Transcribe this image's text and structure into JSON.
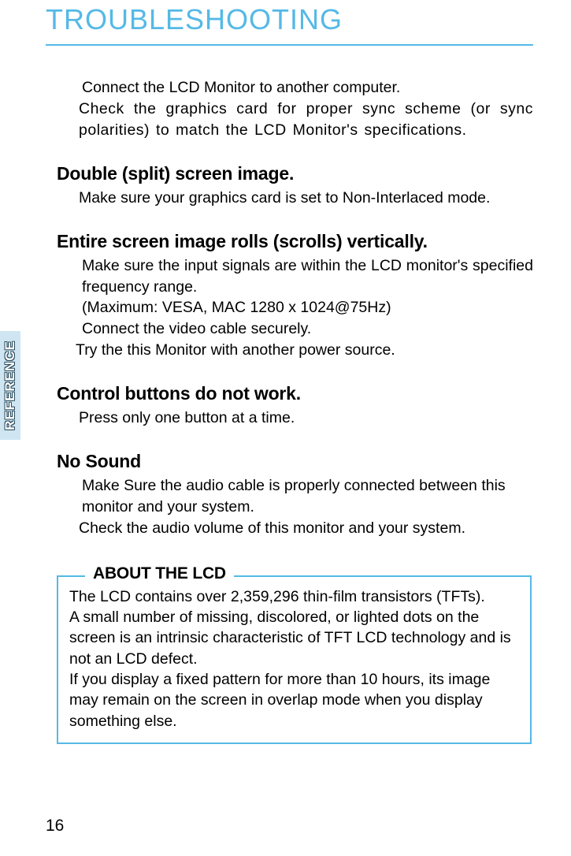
{
  "colors": {
    "accent": "#55b9e6",
    "tab_bg": "#cfe6f2",
    "tab_text_fill": "#ffffff",
    "tab_text_outline": "#2a4a5c",
    "text": "#000000",
    "background": "#ffffff"
  },
  "typography": {
    "title_size_pt": 27,
    "section_title_size_pt": 17,
    "body_size_pt": 14.5,
    "box_legend_size_pt": 16
  },
  "page_title": "TROUBLESHOOTING",
  "side_tab": "REFERENCE",
  "intro": {
    "line1": "Connect the LCD Monitor to another computer.",
    "line2": "Check the graphics card for proper sync scheme (or sync polarities) to match the LCD Monitor's specifications."
  },
  "sections": [
    {
      "title": "Double (split) screen image.",
      "lines": [
        "Make sure your graphics card is set to Non-Interlaced mode."
      ]
    },
    {
      "title": "Entire screen image rolls (scrolls) vertically.",
      "lines": [
        "Make sure the input signals are within the LCD monitor's specified frequency range.",
        "(Maximum: VESA, MAC 1280 x 1024@75Hz)",
        "Connect the video cable securely.",
        "Try the this Monitor with another power source."
      ]
    },
    {
      "title": "Control buttons do not work.",
      "lines": [
        "Press only one button at a time."
      ]
    },
    {
      "title": "No Sound",
      "lines": [
        "Make Sure the audio cable is properly connected between this monitor and your system.",
        "Check the audio volume of this monitor and your system."
      ]
    }
  ],
  "about_box": {
    "legend": "ABOUT THE LCD",
    "lines": [
      "The LCD contains over 2,359,296 thin-film transistors (TFTs).",
      "A small number of missing, discolored, or lighted dots on the screen is an intrinsic characteristic of TFT LCD technology and is not an LCD defect.",
      "If you display a fixed pattern for more than 10 hours, its image may remain on the screen in overlap mode when you display something else."
    ]
  },
  "page_number": "16"
}
